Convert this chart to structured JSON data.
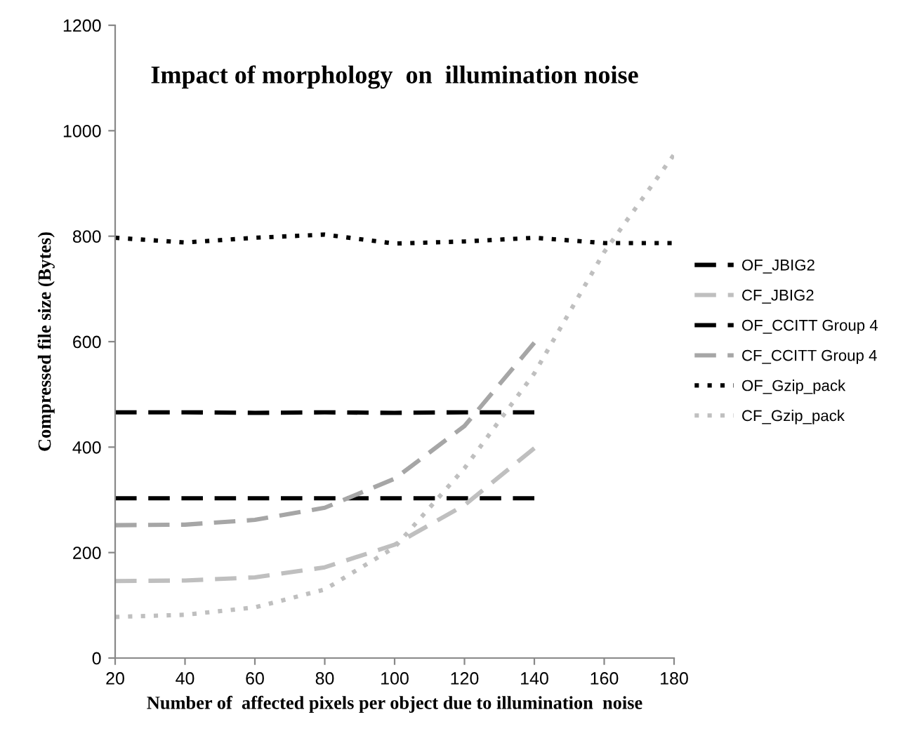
{
  "chart_data": {
    "type": "line",
    "title": "Impact of morphology  on  illumination noise",
    "xlabel": "Number of  affected pixels per object due to illumination  noise",
    "ylabel": "Compressed file size (Bytes)",
    "x": [
      20,
      40,
      60,
      80,
      100,
      120,
      140,
      160,
      180
    ],
    "series": [
      {
        "name": "OF_JBIG2",
        "color": "#000000",
        "line_style": "dashed",
        "values": [
          303,
          303,
          303,
          303,
          303,
          303,
          303,
          null,
          null
        ]
      },
      {
        "name": "CF_JBIG2",
        "color": "#bfbfbf",
        "line_style": "dashed",
        "values": [
          146,
          147,
          153,
          172,
          215,
          290,
          398,
          null,
          null
        ]
      },
      {
        "name": "OF_CCITT Group 4",
        "color": "#000000",
        "line_style": "dashed",
        "values": [
          466,
          466,
          465,
          466,
          465,
          466,
          466,
          null,
          null
        ]
      },
      {
        "name": "CF_CCITT Group 4",
        "color": "#a6a6a6",
        "line_style": "dashed",
        "values": [
          252,
          253,
          262,
          285,
          340,
          440,
          598,
          null,
          null
        ]
      },
      {
        "name": "OF_Gzip_pack",
        "color": "#000000",
        "line_style": "dotted",
        "values": [
          797,
          788,
          797,
          803,
          786,
          790,
          797,
          787,
          787
        ]
      },
      {
        "name": "CF_Gzip_pack",
        "color": "#bfbfbf",
        "line_style": "dotted",
        "values": [
          78,
          82,
          96,
          130,
          210,
          360,
          540,
          770,
          955
        ]
      }
    ],
    "xlim": [
      20,
      180
    ],
    "xticks": [
      20,
      40,
      60,
      80,
      100,
      120,
      140,
      160,
      180
    ],
    "ylim": [
      0,
      1200
    ],
    "yticks": [
      0,
      200,
      400,
      600,
      800,
      1000,
      1200
    ],
    "grid": false,
    "legend": "right",
    "marker": "none"
  }
}
